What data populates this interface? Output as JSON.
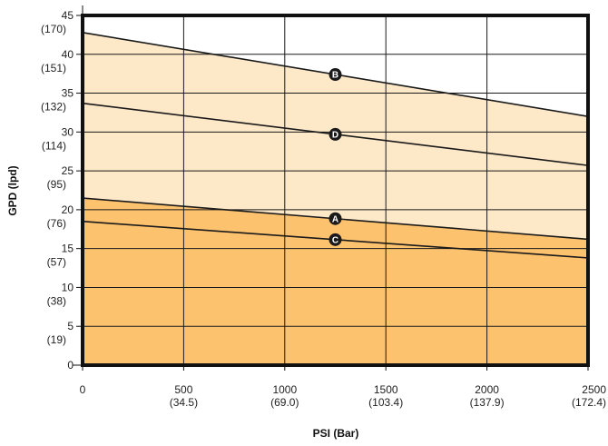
{
  "chart_data": {
    "type": "line",
    "title": "",
    "xlabel": "PSI (Bar)",
    "ylabel": "GPD (lpd)",
    "xlim": [
      0,
      2500
    ],
    "ylim": [
      0,
      45
    ],
    "grid": true,
    "x_ticks": [
      {
        "value": 0,
        "label": "0",
        "sub": ""
      },
      {
        "value": 500,
        "label": "500",
        "sub": "(34.5)"
      },
      {
        "value": 1000,
        "label": "1000",
        "sub": "(69.0)"
      },
      {
        "value": 1500,
        "label": "1500",
        "sub": "(103.4)"
      },
      {
        "value": 2000,
        "label": "2000",
        "sub": "(137.9)"
      },
      {
        "value": 2500,
        "label": "2500",
        "sub": "(172.4)"
      }
    ],
    "y_ticks": [
      {
        "value": 0,
        "label": "0",
        "sub": ""
      },
      {
        "value": 5,
        "label": "5",
        "sub": "(19)"
      },
      {
        "value": 10,
        "label": "10",
        "sub": "(38)"
      },
      {
        "value": 15,
        "label": "15",
        "sub": "(57)"
      },
      {
        "value": 20,
        "label": "20",
        "sub": "(76)"
      },
      {
        "value": 25,
        "label": "25",
        "sub": "(95)"
      },
      {
        "value": 30,
        "label": "30",
        "sub": "(114)"
      },
      {
        "value": 35,
        "label": "35",
        "sub": "(132)"
      },
      {
        "value": 40,
        "label": "40",
        "sub": "(151)"
      },
      {
        "value": 45,
        "label": "45",
        "sub": "(170)"
      }
    ],
    "series": [
      {
        "name": "B",
        "x": [
          0,
          2500
        ],
        "y": [
          42.8,
          32.0
        ],
        "marker_x": 1250
      },
      {
        "name": "D",
        "x": [
          0,
          2500
        ],
        "y": [
          33.7,
          25.7
        ],
        "marker_x": 1250
      },
      {
        "name": "A",
        "x": [
          0,
          2500
        ],
        "y": [
          21.5,
          16.2
        ],
        "marker_x": 1250
      },
      {
        "name": "C",
        "x": [
          0,
          2500
        ],
        "y": [
          18.5,
          13.8
        ],
        "marker_x": 1250
      }
    ],
    "colors": {
      "band_light": "#fde8c8",
      "band_dark": "#fdc26e",
      "line": "#1a1a1a",
      "grid": "#1a1a1a",
      "marker": "#1a1a1a"
    }
  }
}
